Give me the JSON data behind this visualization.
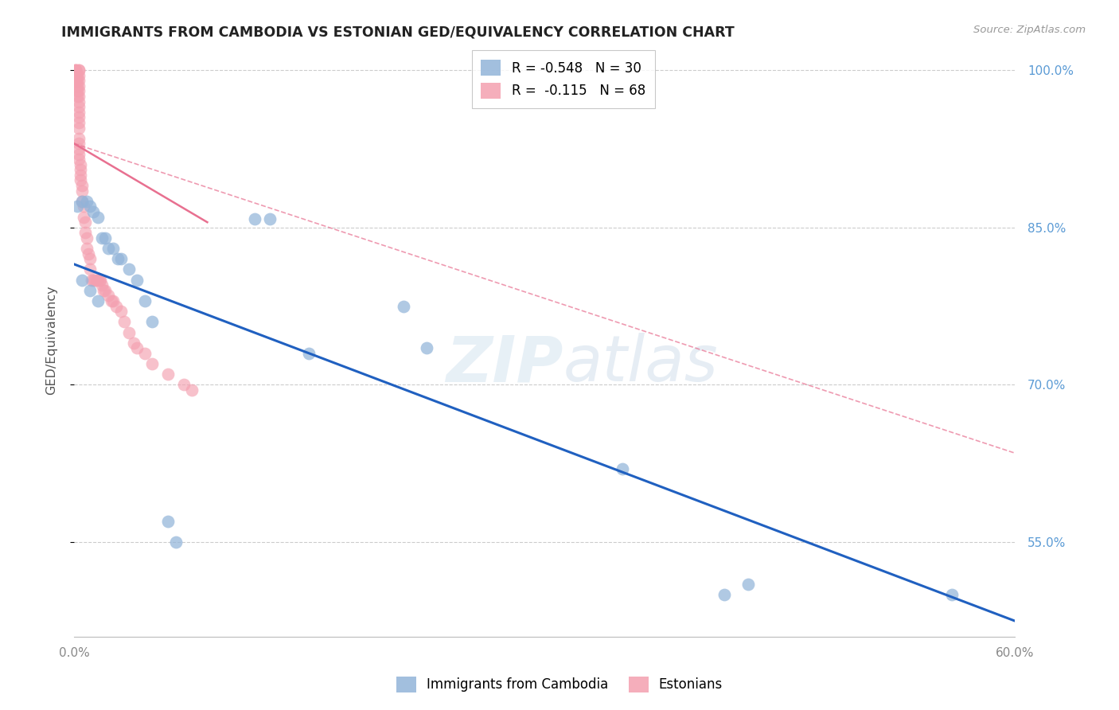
{
  "title": "IMMIGRANTS FROM CAMBODIA VS ESTONIAN GED/EQUIVALENCY CORRELATION CHART",
  "source": "Source: ZipAtlas.com",
  "ylabel": "GED/Equivalency",
  "legend_labels": [
    "Immigrants from Cambodia",
    "Estonians"
  ],
  "blue_R": -0.548,
  "blue_N": 30,
  "pink_R": -0.115,
  "pink_N": 68,
  "xlim": [
    0.0,
    0.6
  ],
  "ylim": [
    0.46,
    1.025
  ],
  "yticks": [
    0.55,
    0.7,
    0.85,
    1.0
  ],
  "ytick_labels": [
    "55.0%",
    "70.0%",
    "85.0%",
    "100.0%"
  ],
  "xticks": [
    0.0,
    0.1,
    0.2,
    0.3,
    0.4,
    0.5,
    0.6
  ],
  "xtick_labels": [
    "0.0%",
    "",
    "",
    "",
    "",
    "",
    "60.0%"
  ],
  "blue_color": "#92B4D9",
  "pink_color": "#F4A0B0",
  "blue_line_color": "#2060C0",
  "pink_line_color": "#E87090",
  "watermark_zip": "ZIP",
  "watermark_atlas": "atlas",
  "blue_scatter_x": [
    0.002,
    0.005,
    0.008,
    0.01,
    0.012,
    0.015,
    0.018,
    0.02,
    0.022,
    0.025,
    0.028,
    0.03,
    0.035,
    0.04,
    0.045,
    0.05,
    0.06,
    0.065,
    0.115,
    0.125,
    0.21,
    0.225,
    0.35,
    0.415,
    0.005,
    0.01,
    0.015,
    0.15,
    0.43,
    0.56
  ],
  "blue_scatter_y": [
    0.87,
    0.875,
    0.875,
    0.87,
    0.865,
    0.86,
    0.84,
    0.84,
    0.83,
    0.83,
    0.82,
    0.82,
    0.81,
    0.8,
    0.78,
    0.76,
    0.57,
    0.55,
    0.858,
    0.858,
    0.775,
    0.735,
    0.62,
    0.5,
    0.8,
    0.79,
    0.78,
    0.73,
    0.51,
    0.5
  ],
  "pink_scatter_x": [
    0.001,
    0.001,
    0.001,
    0.001,
    0.001,
    0.002,
    0.002,
    0.002,
    0.002,
    0.002,
    0.003,
    0.003,
    0.003,
    0.003,
    0.003,
    0.003,
    0.003,
    0.003,
    0.003,
    0.003,
    0.003,
    0.003,
    0.003,
    0.003,
    0.003,
    0.003,
    0.003,
    0.003,
    0.004,
    0.004,
    0.004,
    0.004,
    0.005,
    0.005,
    0.005,
    0.006,
    0.006,
    0.007,
    0.007,
    0.008,
    0.008,
    0.009,
    0.01,
    0.01,
    0.011,
    0.012,
    0.013,
    0.014,
    0.015,
    0.016,
    0.017,
    0.018,
    0.019,
    0.02,
    0.022,
    0.024,
    0.025,
    0.027,
    0.03,
    0.032,
    0.035,
    0.038,
    0.04,
    0.045,
    0.05,
    0.06,
    0.07,
    0.075
  ],
  "pink_scatter_y": [
    1.0,
    1.0,
    1.0,
    0.995,
    0.99,
    0.995,
    0.99,
    0.985,
    0.98,
    0.975,
    1.0,
    1.0,
    0.995,
    0.99,
    0.985,
    0.98,
    0.975,
    0.97,
    0.965,
    0.96,
    0.955,
    0.95,
    0.945,
    0.935,
    0.93,
    0.925,
    0.92,
    0.915,
    0.91,
    0.905,
    0.9,
    0.895,
    0.89,
    0.885,
    0.875,
    0.87,
    0.86,
    0.855,
    0.845,
    0.84,
    0.83,
    0.825,
    0.82,
    0.81,
    0.8,
    0.8,
    0.8,
    0.8,
    0.8,
    0.8,
    0.8,
    0.795,
    0.79,
    0.79,
    0.785,
    0.78,
    0.78,
    0.775,
    0.77,
    0.76,
    0.75,
    0.74,
    0.735,
    0.73,
    0.72,
    0.71,
    0.7,
    0.695
  ],
  "blue_regr": [
    0.0,
    0.815,
    0.6,
    0.475
  ],
  "pink_regr": [
    0.0,
    0.93,
    0.6,
    0.635
  ],
  "pink_solid_regr": [
    0.0,
    0.93,
    0.085,
    0.855
  ]
}
